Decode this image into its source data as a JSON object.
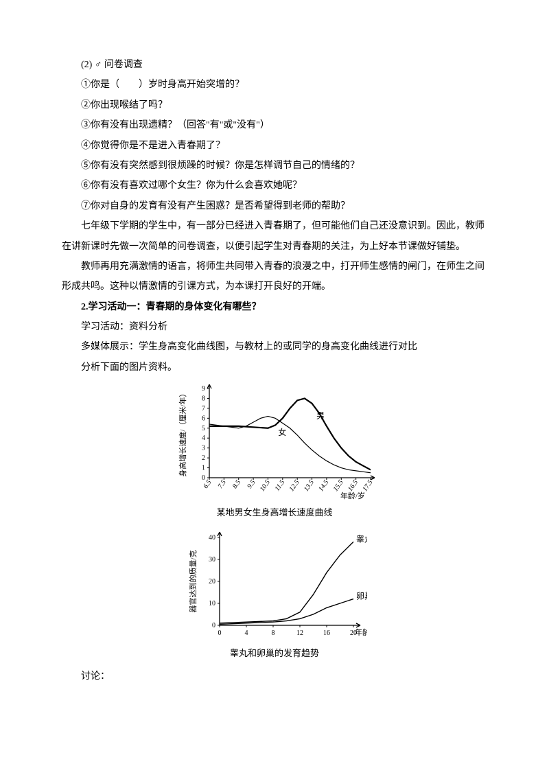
{
  "questions": {
    "header": "(2) ♂ 问卷调查",
    "q1": "①你是（　　）岁时身高开始突增的？",
    "q2": "②你出现喉结了吗？",
    "q3": "③你有没有出现遗精？（回答\"有\"或\"没有\"）",
    "q4": "④你觉得你是不是进入青春期了？",
    "q5": "⑤你有没有突然感到很烦躁的时候？你是怎样调节自己的情绪的？",
    "q6": "⑥你有没有喜欢过哪个女生？你为什么会喜欢她呢？",
    "q7": "⑦你对自身的发育有没有产生困惑？是否希望得到老师的帮助？"
  },
  "body": {
    "p1": "七年级下学期的学生中，有一部分已经进入青春期了，但可能他们自己还没意识到。因此，教师在讲新课时先做一次简单的问卷调查，以便引起学生对青春期的关注，为上好本节课做好铺垫。",
    "p2": "教师再用充满激情的语言，将师生共同带入青春的浪漫之中，打开师生感情的闸门，在师生之间形成共鸣。这种以情激情的引课方式，为本课打开良好的开端。",
    "h": "2.学习活动一：青春期的身体变化有哪些？",
    "p3": "学习活动：资料分析",
    "p4": "多媒体展示：学生身高变化曲线图，与教材上的或同学的身高变化曲线进行对比",
    "p5": "分析下面的图片资料。",
    "tail": "讨论："
  },
  "chart1": {
    "type": "line",
    "title": "某地男女生身高增长速度曲线",
    "ylabel": "身高增长速度/（厘米/年）",
    "xlabel": "年龄/岁",
    "yticks": [
      0,
      1,
      2,
      3,
      4,
      5,
      6,
      7,
      8,
      9
    ],
    "xticks": [
      "6.5",
      "7.5",
      "8.5",
      "9.5",
      "10.5",
      "11.5",
      "12.5",
      "13.5",
      "14.5",
      "15.5",
      "16.5",
      "17.5"
    ],
    "series": {
      "male": {
        "label": "男",
        "color": "#000",
        "width": 2.2,
        "x": [
          6.5,
          7.5,
          8.5,
          9.5,
          10.5,
          11.0,
          11.5,
          12.0,
          12.5,
          13.0,
          13.5,
          14.0,
          14.5,
          15.0,
          15.5,
          16.0,
          16.5,
          17.0,
          17.5
        ],
        "y": [
          5.2,
          5.2,
          5.2,
          5.1,
          5.0,
          5.3,
          6.0,
          7.0,
          7.8,
          8.0,
          7.5,
          6.5,
          5.2,
          4.0,
          3.0,
          2.2,
          1.6,
          1.2,
          0.8
        ]
      },
      "female": {
        "label": "女",
        "color": "#000",
        "width": 1.2,
        "x": [
          6.5,
          7.5,
          8.5,
          9.0,
          9.5,
          10.0,
          10.5,
          11.0,
          11.5,
          12.0,
          12.5,
          13.0,
          13.5,
          14.0,
          14.5,
          15.0,
          15.5,
          16.0,
          16.5,
          17.0,
          17.5
        ],
        "y": [
          5.4,
          5.2,
          5.0,
          5.2,
          5.6,
          6.0,
          6.2,
          6.0,
          5.5,
          5.0,
          4.3,
          3.5,
          2.8,
          2.2,
          1.7,
          1.3,
          1.0,
          0.8,
          0.7,
          0.6,
          0.5
        ]
      }
    },
    "label_fontsize": 11,
    "tick_fontsize": 10,
    "background": "#ffffff"
  },
  "chart2": {
    "type": "line",
    "title": "睾丸和卵巢的发育趋势",
    "ylabel": "器官达到的质量/克",
    "xlabel": "年龄/岁",
    "yticks": [
      0,
      10,
      20,
      30,
      40
    ],
    "xticks": [
      0,
      4,
      8,
      12,
      16,
      20
    ],
    "series": {
      "testis": {
        "label": "睾丸",
        "color": "#000",
        "width": 1.4,
        "x": [
          0,
          4,
          8,
          10,
          12,
          14,
          16,
          18,
          20
        ],
        "y": [
          1,
          1.5,
          2,
          3,
          6,
          14,
          24,
          32,
          38
        ]
      },
      "ovary": {
        "label": "卵巢",
        "color": "#000",
        "width": 1.4,
        "x": [
          0,
          4,
          8,
          10,
          12,
          14,
          16,
          18,
          20
        ],
        "y": [
          0.5,
          1,
          1.5,
          2,
          3,
          5,
          8,
          10,
          12
        ]
      }
    },
    "label_fontsize": 11,
    "tick_fontsize": 10,
    "background": "#ffffff"
  }
}
